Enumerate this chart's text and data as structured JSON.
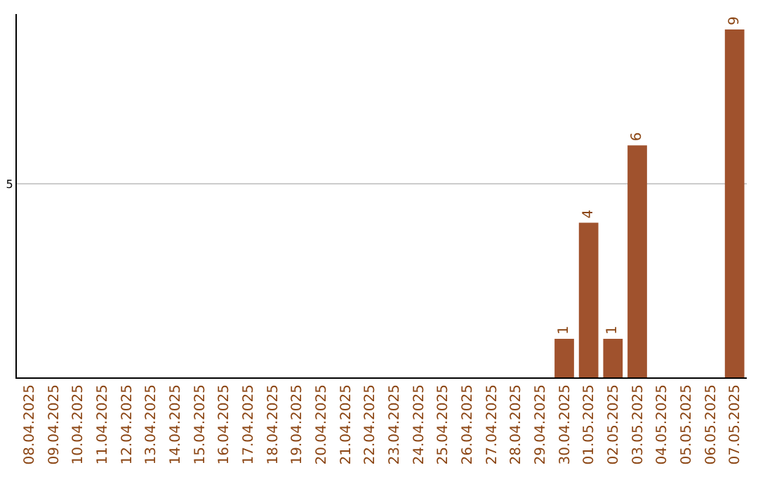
{
  "chart_data": {
    "type": "bar",
    "categories": [
      "08.04.2025",
      "09.04.2025",
      "10.04.2025",
      "11.04.2025",
      "12.04.2025",
      "13.04.2025",
      "14.04.2025",
      "15.04.2025",
      "16.04.2025",
      "17.04.2025",
      "18.04.2025",
      "19.04.2025",
      "20.04.2025",
      "21.04.2025",
      "22.04.2025",
      "23.04.2025",
      "24.04.2025",
      "25.04.2025",
      "26.04.2025",
      "27.04.2025",
      "28.04.2025",
      "29.04.2025",
      "30.04.2025",
      "01.05.2025",
      "02.05.2025",
      "03.05.2025",
      "04.05.2025",
      "05.05.2025",
      "06.05.2025",
      "07.05.2025"
    ],
    "values": [
      null,
      null,
      null,
      null,
      null,
      null,
      null,
      null,
      null,
      null,
      null,
      null,
      null,
      null,
      null,
      null,
      null,
      null,
      null,
      null,
      null,
      null,
      1,
      4,
      1,
      6,
      null,
      null,
      null,
      9
    ],
    "color": "#a0522d",
    "ylim": [
      0,
      9.4
    ],
    "yticks": [
      5
    ],
    "grid": "y",
    "data_labels": true
  }
}
